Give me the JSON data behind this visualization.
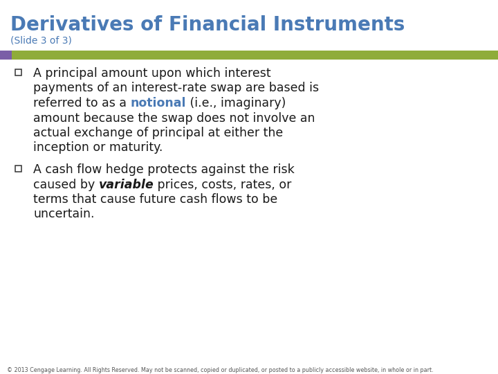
{
  "title": "Derivatives of Financial Instruments",
  "subtitle": "(Slide 3 of 3)",
  "title_color": "#4a7ab5",
  "subtitle_color": "#4a7ab5",
  "accent_bar_color": "#8fac3a",
  "accent_square_color": "#7b5ea7",
  "background_color": "#ffffff",
  "notional_color": "#4a7ab5",
  "footer": "© 2013 Cengage Learning. All Rights Reserved. May not be scanned, copied or duplicated, or posted to a publicly accessible website, in whole or in part.",
  "footer_color": "#555555",
  "text_color": "#1a1a1a",
  "bullet_color": "#333333",
  "title_fontsize": 20,
  "subtitle_fontsize": 10,
  "body_fontsize": 12.5,
  "footer_fontsize": 5.8
}
